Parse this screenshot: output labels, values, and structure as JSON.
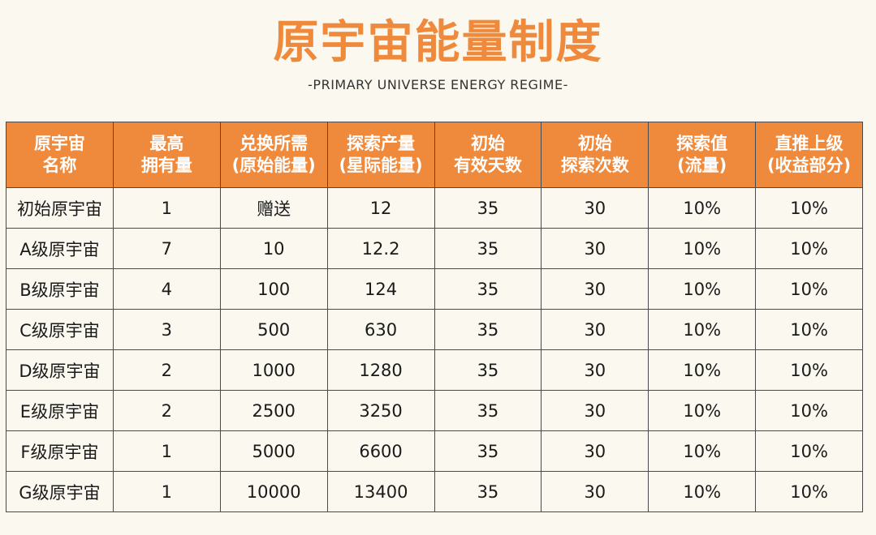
{
  "title": "原宇宙能量制度",
  "subtitle": "-PRIMARY UNIVERSE ENERGY REGIME-",
  "table": {
    "headers": [
      [
        "原宇宙",
        "名称"
      ],
      [
        "最高",
        "拥有量"
      ],
      [
        "兑换所需",
        "(原始能量)"
      ],
      [
        "探索产量",
        "(星际能量)"
      ],
      [
        "初始",
        "有效天数"
      ],
      [
        "初始",
        "探索次数"
      ],
      [
        "探索值",
        "(流量)"
      ],
      [
        "直推上级",
        "(收益部分)"
      ]
    ],
    "rows": [
      [
        "初始原宇宙",
        "1",
        "赠送",
        "12",
        "35",
        "30",
        "10%",
        "10%"
      ],
      [
        "A级原宇宙",
        "7",
        "10",
        "12.2",
        "35",
        "30",
        "10%",
        "10%"
      ],
      [
        "B级原宇宙",
        "4",
        "100",
        "124",
        "35",
        "30",
        "10%",
        "10%"
      ],
      [
        "C级原宇宙",
        "3",
        "500",
        "630",
        "35",
        "30",
        "10%",
        "10%"
      ],
      [
        "D级原宇宙",
        "2",
        "1000",
        "1280",
        "35",
        "30",
        "10%",
        "10%"
      ],
      [
        "E级原宇宙",
        "2",
        "2500",
        "3250",
        "35",
        "30",
        "10%",
        "10%"
      ],
      [
        "F级原宇宙",
        "1",
        "5000",
        "6600",
        "35",
        "30",
        "10%",
        "10%"
      ],
      [
        "G级原宇宙",
        "1",
        "10000",
        "13400",
        "35",
        "30",
        "10%",
        "10%"
      ]
    ]
  },
  "colors": {
    "accent": "#ef8a3c",
    "background": "#fbf8ef",
    "border": "#4a4a4a"
  }
}
